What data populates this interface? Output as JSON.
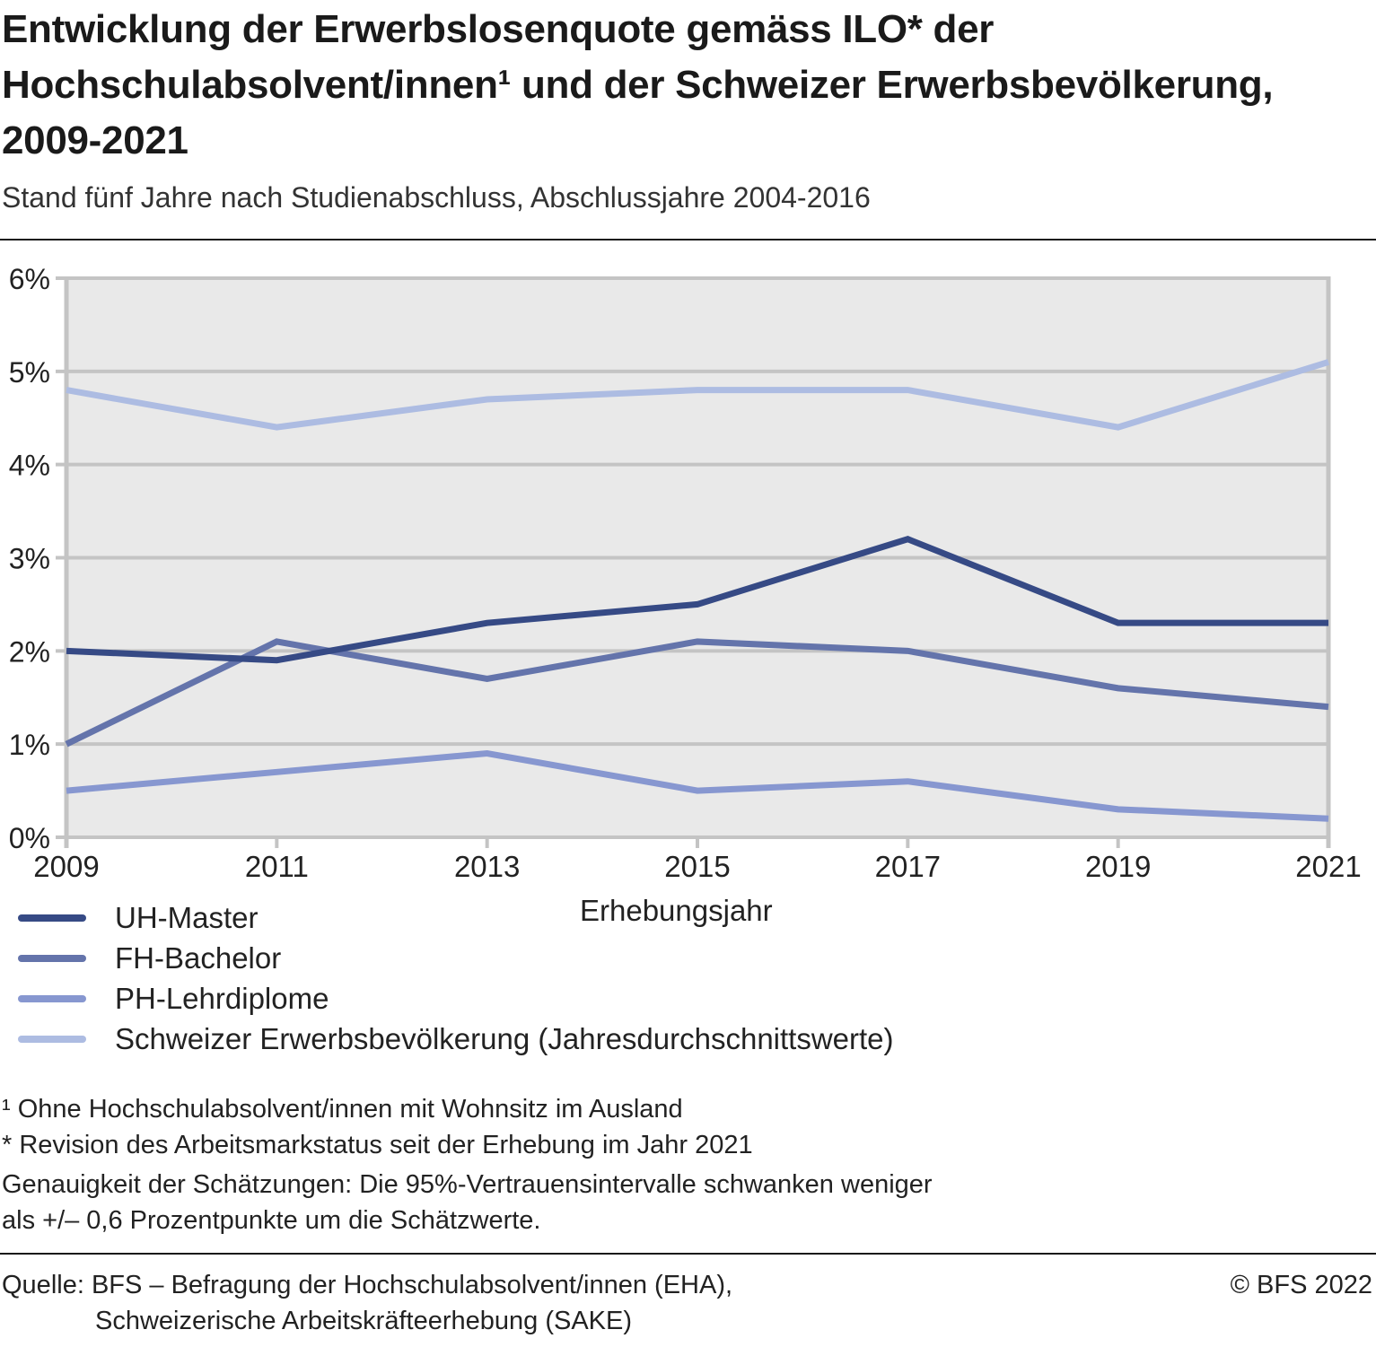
{
  "header": {
    "title": "Entwicklung der Erwerbslosenquote gemäss ILO* der Hochschulabsolvent/innen¹ und der Schweizer Erwerbsbevölkerung, 2009-2021",
    "subtitle": "Stand fünf Jahre nach Studienabschluss, Abschlussjahre 2004-2016"
  },
  "chart_data": {
    "type": "line",
    "title": "Entwicklung der Erwerbslosenquote gemäss ILO* der Hochschulabsolvent/innen¹ und der Schweizer Erwerbsbevölkerung, 2009-2021",
    "subtitle": "Stand fünf Jahre nach Studienabschluss, Abschlussjahre 2004-2016",
    "xlabel": "Erhebungsjahr",
    "ylabel": "",
    "x": [
      2009,
      2011,
      2013,
      2015,
      2017,
      2019,
      2021
    ],
    "x_tick_labels": [
      "2009",
      "2011",
      "2013",
      "2015",
      "2017",
      "2019",
      "2021"
    ],
    "ylim": [
      0,
      6
    ],
    "y_ticks": [
      0,
      1,
      2,
      3,
      4,
      5,
      6
    ],
    "y_tick_labels": [
      "0%",
      "1%",
      "2%",
      "3%",
      "4%",
      "5%",
      "6%"
    ],
    "grid": true,
    "legend_position": "bottom-left",
    "series": [
      {
        "name": "UH-Master",
        "color": "#364a85",
        "values": [
          2.0,
          1.9,
          2.3,
          2.5,
          3.2,
          2.3,
          2.3
        ]
      },
      {
        "name": "FH-Bachelor",
        "color": "#6474ab",
        "values": [
          1.0,
          2.1,
          1.7,
          2.1,
          2.0,
          1.6,
          1.4
        ]
      },
      {
        "name": "PH-Lehrdiplome",
        "color": "#8797d0",
        "values": [
          0.5,
          0.7,
          0.9,
          0.5,
          0.6,
          0.3,
          0.2
        ]
      },
      {
        "name": "Schweizer Erwerbsbevölkerung (Jahresdurchschnittswerte)",
        "color": "#adbce2",
        "values": [
          4.8,
          4.4,
          4.7,
          4.8,
          4.8,
          4.4,
          5.1
        ]
      }
    ]
  },
  "notes": [
    "¹ Ohne Hochschulabsolvent/innen mit Wohnsitz im Ausland",
    "* Revision des Arbeitsmarkstatus seit der Erhebung im Jahr 2021",
    "Genauigkeit der Schätzungen: Die 95%-Vertrauensintervalle schwanken weniger",
    "als +/– 0,6 Prozentpunkte um die Schätzwerte."
  ],
  "source": {
    "line1": "Quelle: BFS – Befragung der Hochschulabsolvent/innen (EHA),",
    "line2": "Schweizerische Arbeitskräfteerhebung (SAKE)"
  },
  "copyright": "© BFS 2022"
}
